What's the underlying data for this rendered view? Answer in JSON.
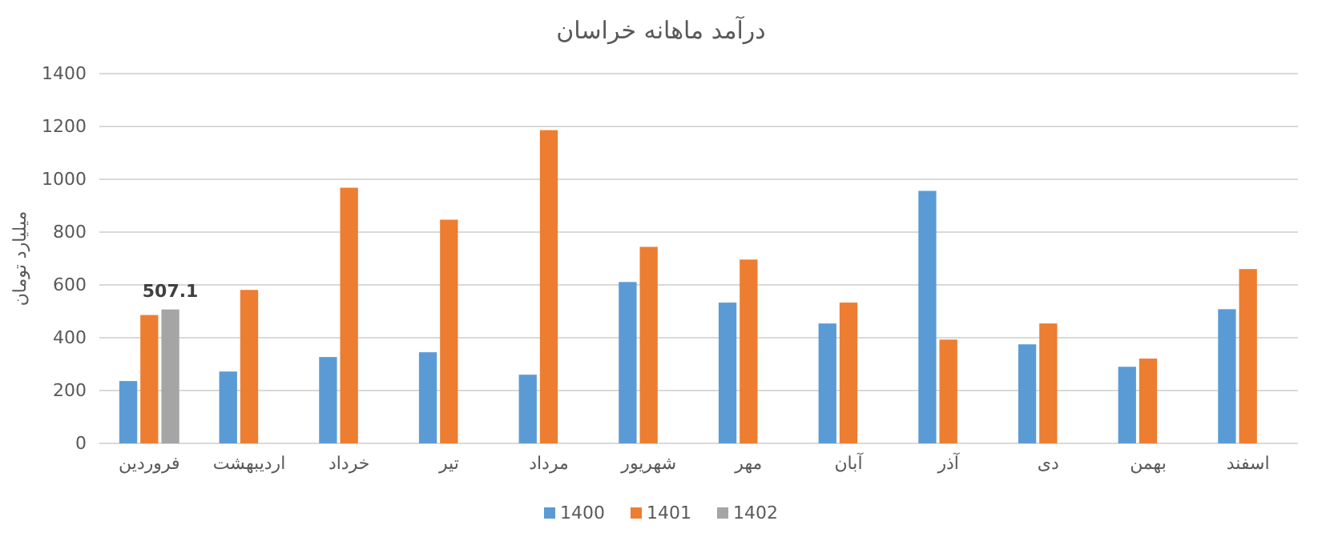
{
  "chart_data": {
    "type": "bar",
    "title": "درآمد ماهانه خراسان",
    "ylabel": "میلیارد تومان",
    "categories": [
      "فروردین",
      "اردیبهشت",
      "خرداد",
      "تیر",
      "مرداد",
      "شهریور",
      "مهر",
      "آبان",
      "آذر",
      "دی",
      "بهمن",
      "اسفند"
    ],
    "series": [
      {
        "name": "1400",
        "color": "#5b9bd5",
        "values": [
          236,
          272,
          327,
          345,
          260,
          611,
          533,
          454,
          956,
          375,
          290,
          508
        ]
      },
      {
        "name": "1401",
        "color": "#ed7d31",
        "values": [
          486,
          581,
          968,
          847,
          1186,
          744,
          696,
          533,
          393,
          454,
          321,
          660
        ]
      },
      {
        "name": "1402",
        "color": "#a5a5a5",
        "values": [
          507.1,
          null,
          null,
          null,
          null,
          null,
          null,
          null,
          null,
          null,
          null,
          null
        ],
        "value_labels": [
          "507.1",
          null,
          null,
          null,
          null,
          null,
          null,
          null,
          null,
          null,
          null,
          null
        ]
      }
    ],
    "ylim": [
      0,
      1400
    ],
    "yticks": [
      0,
      200,
      400,
      600,
      800,
      1000,
      1200,
      1400
    ],
    "grid": "y",
    "legend": "bottom"
  }
}
